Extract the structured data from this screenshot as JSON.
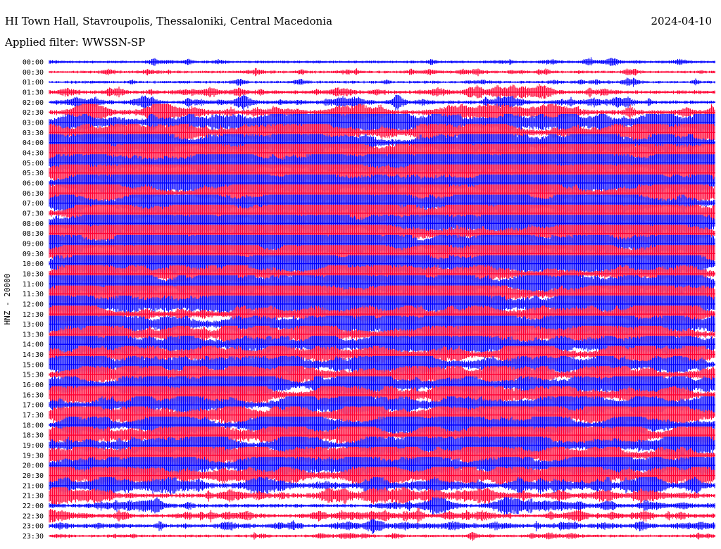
{
  "header": {
    "title": "HI Town Hall, Stavroupolis, Thessaloniki, Central Macedonia",
    "date": "2024-04-10",
    "filter": "Applied filter: WWSSN-SP"
  },
  "chart_data": {
    "type": "line",
    "title": "HI Town Hall, Stavroupolis, Thessaloniki, Central Macedonia",
    "ylabel": "HNZ - 20000",
    "xlabel": "",
    "colors": [
      "#0000ff",
      "#ff0033"
    ],
    "row_labels": [
      "00:00",
      "00:30",
      "01:00",
      "01:30",
      "02:00",
      "02:30",
      "03:00",
      "03:30",
      "04:00",
      "04:30",
      "05:00",
      "05:30",
      "06:00",
      "06:30",
      "07:00",
      "07:30",
      "08:00",
      "08:30",
      "09:00",
      "09:30",
      "10:00",
      "10:30",
      "11:00",
      "11:30",
      "12:00",
      "12:30",
      "13:00",
      "13:30",
      "14:00",
      "14:30",
      "15:00",
      "15:30",
      "16:00",
      "16:30",
      "17:00",
      "17:30",
      "18:00",
      "18:30",
      "19:00",
      "19:30",
      "20:00",
      "20:30",
      "21:00",
      "21:30",
      "22:00",
      "22:30",
      "23:00",
      "23:30"
    ],
    "activity": [
      1,
      1,
      1,
      2,
      2,
      3,
      4,
      4,
      5,
      5,
      5,
      5,
      5,
      5,
      5,
      5,
      5,
      5,
      5,
      5,
      5,
      4,
      5,
      5,
      5,
      4,
      4,
      4,
      4,
      4,
      4,
      4,
      4,
      4,
      4,
      4,
      4,
      4,
      4,
      4,
      4,
      4,
      3,
      3,
      2,
      2,
      2,
      1
    ]
  }
}
